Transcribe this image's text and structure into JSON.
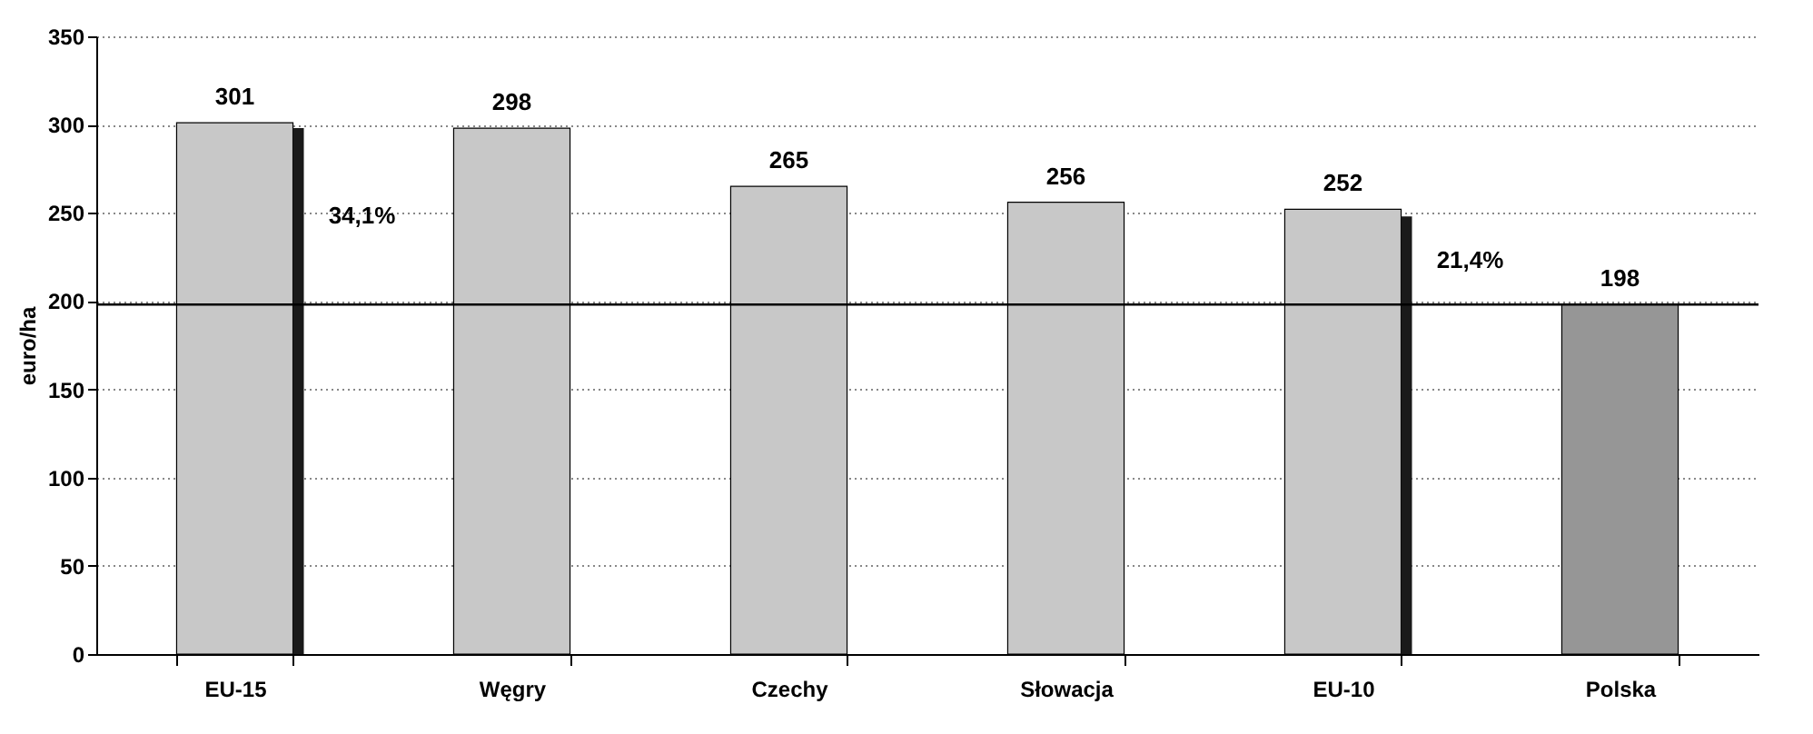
{
  "chart_data": {
    "type": "bar",
    "ylabel": "euro/ha",
    "categories": [
      "EU-15",
      "Węgry",
      "Czechy",
      "Słowacja",
      "EU-10",
      "Polska"
    ],
    "series": [
      {
        "colors": [
          "#c8c8c8",
          "#c8c8c8",
          "#c8c8c8",
          "#c8c8c8",
          "#c8c8c8",
          "#969696"
        ],
        "values": [
          301,
          298,
          265,
          256,
          252,
          198
        ]
      },
      {
        "type": "bar",
        "color": "#1a1a1a",
        "values": [
          298,
          null,
          null,
          null,
          248,
          null
        ],
        "value_labels": [
          null,
          null,
          null,
          null,
          null,
          null
        ]
      }
    ],
    "data_labels": true,
    "ylim": [
      0,
      350
    ],
    "yticks": [
      0,
      50,
      100,
      150,
      200,
      250,
      300,
      350
    ],
    "grid": "y",
    "ref_lines": [
      {
        "axis": "y",
        "value": 198,
        "color": "#000000"
      }
    ],
    "annotations": [
      "34,1%",
      "21,4%"
    ]
  }
}
